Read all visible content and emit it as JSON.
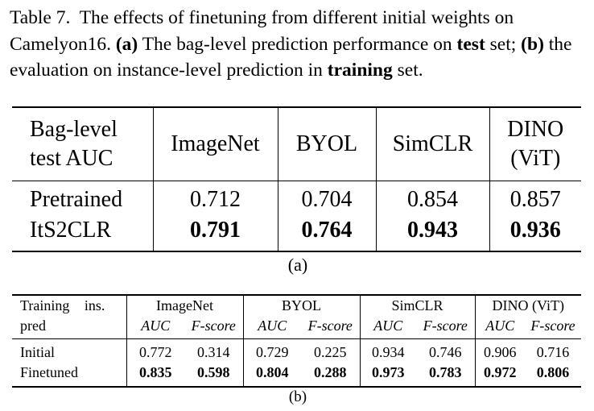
{
  "caption": {
    "label": "Table 7.",
    "text1": "The effects of finetuning from different initial weights on Camelyon16.",
    "a_tag": "(a)",
    "text2": "The bag-level prediction performance on",
    "test": "test",
    "text3": "set;",
    "b_tag": "(b)",
    "text4": "the evaluation on instance-level prediction in",
    "training": "training",
    "text5": "set."
  },
  "table_a": {
    "corner": [
      "Bag-level",
      "test AUC"
    ],
    "columns": [
      "ImageNet",
      "BYOL",
      "SimCLR",
      "DINO (ViT)"
    ],
    "rows": [
      {
        "label": "Pretrained",
        "values": [
          "0.712",
          "0.704",
          "0.854",
          "0.857"
        ],
        "bold": false
      },
      {
        "label": "ItS2CLR",
        "values": [
          "0.791",
          "0.764",
          "0.943",
          "0.936"
        ],
        "bold": true
      }
    ],
    "sublabel": "(a)"
  },
  "table_b": {
    "corner": [
      "Training   ins.",
      "pred"
    ],
    "columns": [
      "ImageNet",
      "BYOL",
      "SimCLR",
      "DINO (ViT)"
    ],
    "metrics": [
      "AUC",
      "F-score"
    ],
    "rows": [
      {
        "label": "Initial",
        "values": [
          "0.772",
          "0.314",
          "0.729",
          "0.225",
          "0.934",
          "0.746",
          "0.906",
          "0.716"
        ],
        "bold": false
      },
      {
        "label": "Finetuned",
        "values": [
          "0.835",
          "0.598",
          "0.804",
          "0.288",
          "0.973",
          "0.783",
          "0.972",
          "0.806"
        ],
        "bold": true
      }
    ],
    "sublabel": "(b)"
  }
}
